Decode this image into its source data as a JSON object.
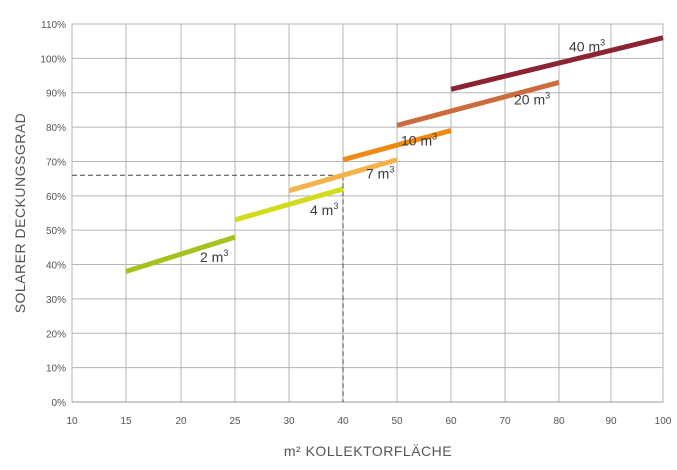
{
  "chart_data": {
    "type": "line",
    "title": "",
    "xlabel": "m² KOLLEKTORFLÄCHE",
    "ylabel": "SOLARER DECKUNGSGRAD",
    "xlim": [
      10,
      100
    ],
    "ylim": [
      0,
      110
    ],
    "x_ticks": [
      "10",
      "15",
      "20",
      "25",
      "30",
      "40",
      "50",
      "60",
      "70",
      "80",
      "90",
      "100"
    ],
    "y_ticks": [
      "0%",
      "10%",
      "20%",
      "30%",
      "40%",
      "50%",
      "60%",
      "70%",
      "80%",
      "90%",
      "100%",
      "110%"
    ],
    "grid": true,
    "series": [
      {
        "name": "2 m³",
        "label_text": "2 m",
        "label_sup": "3",
        "color": "#a6c21e",
        "x": [
          15,
          25
        ],
        "y": [
          38,
          48
        ]
      },
      {
        "name": "4 m³",
        "label_text": "4 m",
        "label_sup": "3",
        "color": "#d2dc1c",
        "x": [
          25,
          40
        ],
        "y": [
          53,
          62
        ]
      },
      {
        "name": "7 m³",
        "label_text": "7 m",
        "label_sup": "3",
        "color": "#f5b24a",
        "x": [
          30,
          50
        ],
        "y": [
          61.5,
          70.5
        ]
      },
      {
        "name": "10 m³",
        "label_text": "10 m",
        "label_sup": "3",
        "color": "#ee8a12",
        "x": [
          40,
          60
        ],
        "y": [
          70.5,
          79
        ]
      },
      {
        "name": "20 m³",
        "label_text": "20 m",
        "label_sup": "3",
        "color": "#cc6b3d",
        "x": [
          50,
          80
        ],
        "y": [
          80.5,
          93
        ]
      },
      {
        "name": "40 m³",
        "label_text": "40 m",
        "label_sup": "3",
        "color": "#8b2332",
        "x": [
          60,
          100
        ],
        "y": [
          91,
          106
        ]
      }
    ],
    "reference_lines": {
      "x": 40,
      "y": 66
    }
  }
}
